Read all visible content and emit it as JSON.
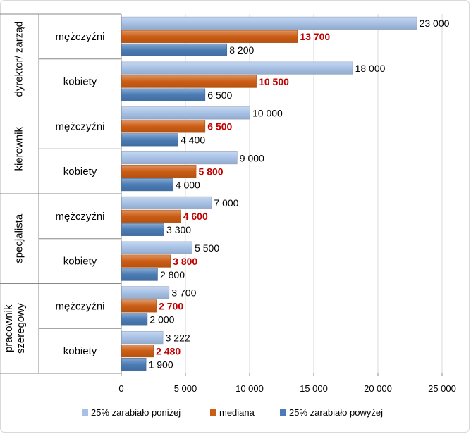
{
  "chart_data": {
    "type": "bar",
    "orientation": "horizontal",
    "groups": [
      "dyrektor/ zarząd",
      "kierownik",
      "specjalista",
      "pracownik szeregowy"
    ],
    "subgroups": [
      "mężczyźni",
      "kobiety"
    ],
    "categories": [
      "dyrektor/ zarząd – mężczyźni",
      "dyrektor/ zarząd – kobiety",
      "kierownik – mężczyźni",
      "kierownik – kobiety",
      "specjalista – mężczyźni",
      "specjalista – kobiety",
      "pracownik szeregowy – mężczyźni",
      "pracownik szeregowy – kobiety"
    ],
    "series": [
      {
        "name": "25% zarabiało poniżej",
        "color": "#a7c1e6",
        "values": [
          23000,
          18000,
          10000,
          9000,
          7000,
          5500,
          3700,
          3222
        ],
        "labels": [
          "23 000",
          "18 000",
          "10 000",
          "9 000",
          "7 000",
          "5 500",
          "3 700",
          "3 222"
        ]
      },
      {
        "name": "mediana",
        "color": "#cc5d14",
        "values": [
          13700,
          10500,
          6500,
          5800,
          4600,
          3800,
          2700,
          2480
        ],
        "labels": [
          "13 700",
          "10 500",
          "6 500",
          "5 800",
          "4 600",
          "3 800",
          "2 700",
          "2 480"
        ]
      },
      {
        "name": "25% zarabiało powyżej",
        "color": "#4b7cb5",
        "values": [
          8200,
          6500,
          4400,
          4000,
          3300,
          2800,
          2000,
          1900
        ],
        "labels": [
          "8 200",
          "6 500",
          "4 400",
          "4 000",
          "3 300",
          "2 800",
          "2 000",
          "1 900"
        ]
      }
    ],
    "xlim": [
      0,
      25000
    ],
    "xticks": [
      0,
      5000,
      10000,
      15000,
      20000,
      25000
    ],
    "xtick_labels": [
      "0",
      "5 000",
      "10 000",
      "15 000",
      "20 000",
      "25 000"
    ],
    "gridlines": true,
    "legend_position": "bottom",
    "median_label_color": "#c00000",
    "label_color": "#000000",
    "grid_color": "#d9d9d9",
    "axis_color": "#888888"
  }
}
